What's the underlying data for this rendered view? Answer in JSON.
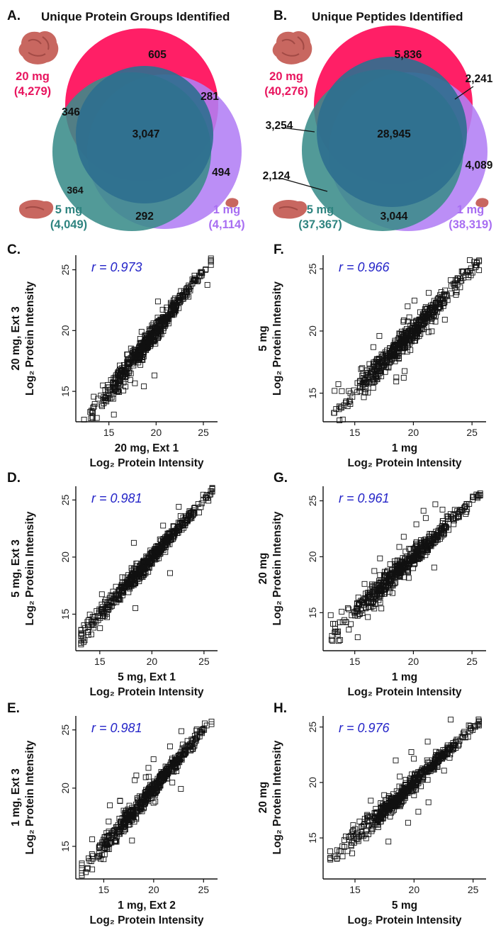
{
  "venns": [
    {
      "letter": "A.",
      "title": "Unique Protein Groups Identified",
      "sets": [
        {
          "name": "20 mg",
          "total": "(4,279)",
          "color": "#ff1f66"
        },
        {
          "name": "5 mg",
          "total": "(4,049)",
          "color": "#3a8c8a"
        },
        {
          "name": "1 mg",
          "total": "(4,114)",
          "color": "#b27ef5"
        }
      ],
      "regions": {
        "only_20": "605",
        "only_5": "",
        "only_1": "494",
        "20_and_1": "281",
        "20_and_5": "346",
        "5_and_1": "292",
        "all": "3,047",
        "extra": "364"
      }
    },
    {
      "letter": "B.",
      "title": "Unique Peptides Identified",
      "sets": [
        {
          "name": "20 mg",
          "total": "(40,276)",
          "color": "#ff1f66"
        },
        {
          "name": "5 mg",
          "total": "(37,367)",
          "color": "#3a8c8a"
        },
        {
          "name": "1 mg",
          "total": "(38,319)",
          "color": "#b27ef5"
        }
      ],
      "regions": {
        "only_20": "5,836",
        "only_1": "4,089",
        "20_and_1": "2,241",
        "20_and_5": "3,254",
        "5_and_1": "3,044",
        "all": "28,945",
        "extra": "2,124"
      }
    }
  ],
  "chart_data": [
    {
      "type": "scatter",
      "letter": "C.",
      "r_label": "r = 0.973",
      "ylabel_top": "20 mg, Ext 3",
      "ylabel_bottom": "Log₂ Protein Intensity",
      "xlabel_top": "20 mg, Ext 1",
      "xlabel_bottom": "Log₂ Protein Intensity",
      "xlim": [
        11.5,
        26.5
      ],
      "ylim": [
        12.5,
        26.2
      ],
      "x_ticks": [
        15,
        20,
        25
      ],
      "y_ticks": [
        15,
        20,
        25
      ],
      "r": 0.973,
      "x_range": [
        12,
        25.8
      ]
    },
    {
      "type": "scatter",
      "letter": "F.",
      "r_label": "r = 0.966",
      "ylabel_top": "5 mg",
      "ylabel_bottom": "Log₂ Protein Intensity",
      "xlabel_top": "1 mg",
      "xlabel_bottom": "Log₂ Protein Intensity",
      "xlim": [
        12.3,
        26.2
      ],
      "ylim": [
        12.7,
        26.1
      ],
      "x_ticks": [
        15,
        20,
        25
      ],
      "y_ticks": [
        15,
        20,
        25
      ],
      "r": 0.966,
      "x_range": [
        12.9,
        25.6
      ]
    },
    {
      "type": "scatter",
      "letter": "D.",
      "r_label": "r = 0.981",
      "ylabel_top": "5 mg, Ext 3",
      "ylabel_bottom": "Log₂ Protein Intensity",
      "xlabel_top": "5 mg, Ext 1",
      "xlabel_bottom": "Log₂ Protein Intensity",
      "xlim": [
        12.7,
        26.3
      ],
      "ylim": [
        11.8,
        26.2
      ],
      "x_ticks": [
        15,
        20,
        25
      ],
      "y_ticks": [
        15,
        20,
        25
      ],
      "r": 0.981,
      "x_range": [
        13.2,
        25.8
      ]
    },
    {
      "type": "scatter",
      "letter": "G.",
      "r_label": "r = 0.961",
      "ylabel_top": "20 mg",
      "ylabel_bottom": "Log₂ Protein Intensity",
      "xlabel_top": "1 mg",
      "xlabel_bottom": "Log₂ Protein Intensity",
      "xlim": [
        12.3,
        26.2
      ],
      "ylim": [
        11.6,
        26.3
      ],
      "x_ticks": [
        15,
        20,
        25
      ],
      "y_ticks": [
        15,
        20,
        25
      ],
      "r": 0.961,
      "x_range": [
        12.9,
        25.7
      ]
    },
    {
      "type": "scatter",
      "letter": "E.",
      "r_label": "r = 0.981",
      "ylabel_top": "1 mg, Ext 3",
      "ylabel_bottom": "Log₂ Protein Intensity",
      "xlabel_top": "1 mg, Ext 2",
      "xlabel_bottom": "Log₂ Protein Intensity",
      "xlim": [
        12.2,
        26.4
      ],
      "ylim": [
        12.2,
        26.2
      ],
      "x_ticks": [
        15,
        20,
        25
      ],
      "y_ticks": [
        15,
        20,
        25
      ],
      "r": 0.981,
      "x_range": [
        12.8,
        25.8
      ]
    },
    {
      "type": "scatter",
      "letter": "H.",
      "r_label": "r = 0.976",
      "ylabel_top": "20 mg",
      "ylabel_bottom": "Log₂ Protein Intensity",
      "xlabel_top": "5 mg",
      "xlabel_bottom": "Log₂ Protein Intensity",
      "xlim": [
        12.3,
        26.1
      ],
      "ylim": [
        11.3,
        26.0
      ],
      "x_ticks": [
        15,
        20,
        25
      ],
      "y_ticks": [
        15,
        20,
        25
      ],
      "r": 0.976,
      "x_range": [
        12.9,
        25.5
      ]
    }
  ]
}
